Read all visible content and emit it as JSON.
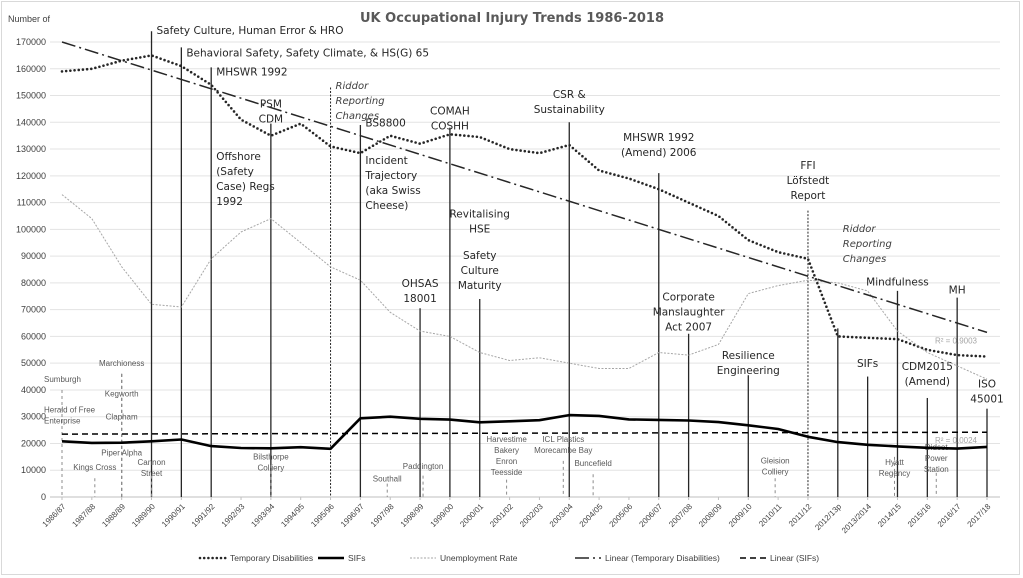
{
  "chart_data": {
    "type": "line",
    "title": "UK Occupational Injury Trends 1986-2018",
    "ylabel": "Number of",
    "xlabel": "",
    "ylim": [
      0,
      170000
    ],
    "yticks": [
      0,
      10000,
      20000,
      30000,
      40000,
      50000,
      60000,
      70000,
      80000,
      90000,
      100000,
      110000,
      120000,
      130000,
      140000,
      150000,
      160000,
      170000
    ],
    "grid": true,
    "legend_position": "bottom",
    "categories": [
      "1986/87",
      "1987/88",
      "1988/89",
      "1989/90",
      "1990/91",
      "1991/92",
      "1992/93",
      "1993/94",
      "1994/95",
      "1995/96",
      "1996/97",
      "1997/98",
      "1998/99",
      "1999/00",
      "2000/01",
      "2001/02",
      "2002/03",
      "2003/04",
      "2004/05",
      "2005/06",
      "2006/07",
      "2007/08",
      "2008/09",
      "2009/10",
      "2010/11",
      "2011/12",
      "2012/13p",
      "2013/2014",
      "2014/15",
      "2015/16",
      "2016/17",
      "2017/18"
    ],
    "series": [
      {
        "name": "Temporary Disabilities",
        "style": "dotted-thick",
        "color": "#262626",
        "values": [
          159000,
          160000,
          163000,
          165000,
          161000,
          154000,
          141000,
          135000,
          139500,
          131000,
          128500,
          135000,
          132000,
          135500,
          134500,
          130000,
          128500,
          131500,
          122000,
          119000,
          115000,
          110000,
          105000,
          96000,
          91500,
          89000,
          60000,
          59500,
          59000,
          55000,
          53000,
          52500
        ]
      },
      {
        "name": "SIFs",
        "style": "solid-thick",
        "color": "#000000",
        "values": [
          20800,
          20200,
          20300,
          20800,
          21500,
          19000,
          18300,
          18200,
          18600,
          18000,
          29400,
          30000,
          29200,
          28900,
          27900,
          28300,
          28700,
          30600,
          30300,
          29000,
          28800,
          28600,
          28000,
          26800,
          25400,
          22500,
          20500,
          19500,
          18900,
          18400,
          18100,
          18700
        ]
      },
      {
        "name": "Unemployment Rate",
        "style": "dotted-thin",
        "color": "#a6a6a6",
        "values": [
          113000,
          104000,
          86000,
          72000,
          71000,
          89000,
          99000,
          104000,
          95000,
          86000,
          81000,
          69000,
          62000,
          60000,
          54000,
          51000,
          52000,
          50000,
          48000,
          48000,
          54000,
          53000,
          57000,
          76000,
          79000,
          81000,
          80000,
          77000,
          62000,
          54000,
          49000,
          44000
        ]
      },
      {
        "name": "Linear (Temporary Disabilities)",
        "style": "dash-dot",
        "color": "#262626",
        "trend_start": 170000,
        "trend_end": 61500,
        "r2_label": "R² = 0.9003"
      },
      {
        "name": "Linear (SIFs)",
        "style": "dashed",
        "color": "#000000",
        "trend_start": 23500,
        "trend_end": 24200,
        "r2_label": "R² = 0.0024"
      }
    ],
    "annotations": [
      {
        "x": 3,
        "top": 174000,
        "line": "solid",
        "lines": [
          "Safety Culture, Human Error & HRO"
        ],
        "style": "ann",
        "anchor": "start",
        "y": 173000
      },
      {
        "x": 4,
        "top": 168000,
        "line": "solid",
        "lines": [
          "Behavioral Safety, Safety Climate, & HS(G) 65"
        ],
        "style": "ann",
        "anchor": "start",
        "y": 164500
      },
      {
        "x": 5,
        "top": 160500,
        "line": "solid",
        "lines": [
          "MHSWR 1992"
        ],
        "style": "ann",
        "anchor": "start",
        "y": 157500
      },
      {
        "x": 5,
        "top": 160500,
        "line": "none",
        "lines": [
          "Offshore",
          "(Safety",
          "Case) Regs",
          "1992"
        ],
        "style": "ann",
        "anchor": "start",
        "y": 126000
      },
      {
        "x": 7,
        "top": 139500,
        "line": "solid",
        "lines": [
          "PSM",
          "CDM"
        ],
        "style": "ann",
        "anchor": "middle",
        "y": 145500
      },
      {
        "x": 9,
        "top": 153000,
        "line": "dotted",
        "lines": [
          "Riddor",
          "Reporting",
          "Changes"
        ],
        "style": "ann-it",
        "anchor": "start",
        "y": 152500
      },
      {
        "x": 10,
        "top": 139000,
        "line": "solid",
        "lines": [
          "BS8800"
        ],
        "style": "ann",
        "anchor": "start",
        "y": 138500
      },
      {
        "x": 10,
        "top": 139000,
        "line": "none",
        "lines": [
          "Incident",
          "Trajectory",
          "(aka Swiss",
          "Cheese)"
        ],
        "style": "ann",
        "anchor": "start",
        "y": 124500
      },
      {
        "x": 12,
        "top": 70500,
        "line": "solid",
        "lines": [
          "OHSAS",
          "18001"
        ],
        "style": "ann",
        "anchor": "middle",
        "y": 78500
      },
      {
        "x": 13,
        "top": 138000,
        "line": "solid",
        "lines": [
          "COMAH",
          "COSHH"
        ],
        "style": "ann",
        "anchor": "middle",
        "y": 143000
      },
      {
        "x": 14,
        "top": 74000,
        "line": "solid",
        "lines": [
          "Revitalising",
          "HSE"
        ],
        "style": "ann",
        "anchor": "middle",
        "y": 104500
      },
      {
        "x": 14,
        "top": 74000,
        "line": "none",
        "lines": [
          "Safety",
          "Culture",
          "Maturity"
        ],
        "style": "ann",
        "anchor": "middle",
        "y": 89000
      },
      {
        "x": 17,
        "top": 140000,
        "line": "solid",
        "lines": [
          "CSR &",
          "Sustainability"
        ],
        "style": "ann",
        "anchor": "middle",
        "y": 149000
      },
      {
        "x": 20,
        "top": 121000,
        "line": "solid",
        "lines": [
          "MHSWR 1992",
          "(Amend) 2006"
        ],
        "style": "ann",
        "anchor": "middle",
        "y": 133000
      },
      {
        "x": 21,
        "top": 61000,
        "line": "solid",
        "lines": [
          "Corporate",
          "Manslaughter",
          "Act 2007"
        ],
        "style": "ann",
        "anchor": "middle",
        "y": 73500
      },
      {
        "x": 23,
        "top": 45500,
        "line": "solid",
        "lines": [
          "Resilience",
          "Engineering"
        ],
        "style": "ann",
        "anchor": "middle",
        "y": 51500
      },
      {
        "x": 25,
        "top": 107000,
        "line": "dotted",
        "lines": [
          "FFI",
          "Löfstedt",
          "Report"
        ],
        "style": "ann",
        "anchor": "middle",
        "y": 122500
      },
      {
        "x": 26,
        "top": 63000,
        "line": "solid",
        "lines": [
          "Riddor",
          "Reporting",
          "Changes"
        ],
        "style": "ann-it",
        "anchor": "start",
        "y": 99000
      },
      {
        "x": 27,
        "top": 45000,
        "line": "solid",
        "lines": [
          "SIFs"
        ],
        "style": "ann",
        "anchor": "middle",
        "y": 48500
      },
      {
        "x": 28,
        "top": 77000,
        "line": "solid",
        "lines": [
          "Mindfulness"
        ],
        "style": "ann",
        "anchor": "middle",
        "y": 79000
      },
      {
        "x": 29,
        "top": 37000,
        "line": "solid",
        "lines": [
          "CDM2015",
          "(Amend)"
        ],
        "style": "ann",
        "anchor": "middle",
        "y": 47500
      },
      {
        "x": 30,
        "top": 74500,
        "line": "solid",
        "lines": [
          "MH"
        ],
        "style": "ann",
        "anchor": "middle",
        "y": 76000
      },
      {
        "x": 31,
        "top": 33000,
        "line": "solid",
        "lines": [
          "ISO",
          "45001"
        ],
        "style": "ann",
        "anchor": "middle",
        "y": 41000
      }
    ],
    "incidents": [
      {
        "x": 0,
        "top": 40000,
        "lines": [
          "Sumburgh"
        ],
        "anchor": "start",
        "y": 43000
      },
      {
        "x": 0,
        "top": 40000,
        "lines": [
          "Herald of Free",
          "Enterprise"
        ],
        "anchor": "start",
        "y": 31500
      },
      {
        "x": 1.1,
        "top": 7000,
        "lines": [
          "Kings Cross"
        ],
        "anchor": "middle",
        "y": 10000
      },
      {
        "x": 2,
        "top": 46000,
        "lines": [
          "Marchioness"
        ],
        "anchor": "middle",
        "y": 49000
      },
      {
        "x": 2,
        "top": 46000,
        "lines": [
          "Kegworth"
        ],
        "anchor": "middle",
        "y": 37500
      },
      {
        "x": 2,
        "top": 46000,
        "lines": [
          "Clapham"
        ],
        "anchor": "middle",
        "y": 29000
      },
      {
        "x": 2,
        "top": 46000,
        "lines": [
          "Piper Alpha"
        ],
        "anchor": "middle",
        "y": 15500
      },
      {
        "x": 3,
        "top": 8000,
        "lines": [
          "Cannon",
          "Street"
        ],
        "anchor": "middle",
        "y": 12000
      },
      {
        "x": 7,
        "top": 12000,
        "lines": [
          "Bilsthorpe",
          "Colliery"
        ],
        "anchor": "middle",
        "y": 14000
      },
      {
        "x": 10.9,
        "top": 5000,
        "lines": [
          "Southall"
        ],
        "anchor": "middle",
        "y": 5700
      },
      {
        "x": 12.1,
        "top": 8000,
        "lines": [
          "Paddington"
        ],
        "anchor": "middle",
        "y": 10500
      },
      {
        "x": 14.9,
        "top": 6500,
        "lines": [
          "Harvestime",
          "Bakery",
          "Enron",
          "Teesside"
        ],
        "anchor": "middle",
        "y": 20500
      },
      {
        "x": 16.8,
        "top": 13500,
        "lines": [
          "ICL Plastics",
          "Morecambe Bay"
        ],
        "anchor": "middle",
        "y": 20500
      },
      {
        "x": 17.8,
        "top": 8500,
        "lines": [
          "Buncefield"
        ],
        "anchor": "middle",
        "y": 11500
      },
      {
        "x": 23.9,
        "top": 7000,
        "lines": [
          "Gleision",
          "Colliery"
        ],
        "anchor": "middle",
        "y": 12500
      },
      {
        "x": 27.9,
        "top": 15000,
        "lines": [
          "Hyatt",
          "Regency"
        ],
        "anchor": "middle",
        "y": 12000
      },
      {
        "x": 29.3,
        "top": 9000,
        "lines": [
          "Didcot",
          "Power",
          "Station"
        ],
        "anchor": "middle",
        "y": 17500
      }
    ]
  }
}
